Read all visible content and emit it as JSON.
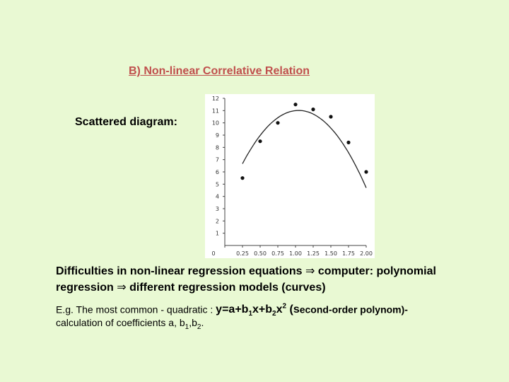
{
  "title": "B) Non-linear Correlative Relation",
  "scatter_label": "Scattered diagram:",
  "difficulties": {
    "line1_pre": "Difficulties in non-linear regression equations",
    "arrow": "⇒",
    "line1_post": "computer: polynomial",
    "line2_pre": "regression",
    "line2_post": "different regression models (curves)"
  },
  "example": {
    "prefix": "E.g. The most common - quadratic : ",
    "formula_y": "y=a+b",
    "formula_sub1": "1",
    "formula_x": "x+b",
    "formula_sub2": "2",
    "formula_x2": "x",
    "formula_sup": "2",
    "note_s": " (s",
    "note_rest": "econd-order polynom)-",
    "calc_pre": "calculation of coefficients a, b",
    "calc_sub1": "1",
    "calc_mid": ",b",
    "calc_sub2": "2",
    "calc_end": "."
  },
  "chart_data": {
    "type": "scatter",
    "x_ticks": [
      "0",
      "0.25",
      "0.50",
      "0.75",
      "1.00",
      "1.25",
      "1.50",
      "1.75",
      "2.00"
    ],
    "y_ticks": [
      "1",
      "2",
      "3",
      "4",
      "5",
      "6",
      "7",
      "8",
      "9",
      "10",
      "11",
      "12"
    ],
    "xlim": [
      0,
      2.0
    ],
    "ylim": [
      0,
      12
    ],
    "points": [
      {
        "x": 0.25,
        "y": 5.5
      },
      {
        "x": 0.5,
        "y": 8.5
      },
      {
        "x": 0.75,
        "y": 10.0
      },
      {
        "x": 1.0,
        "y": 11.5
      },
      {
        "x": 1.25,
        "y": 11.1
      },
      {
        "x": 1.5,
        "y": 10.5
      },
      {
        "x": 1.75,
        "y": 8.4
      },
      {
        "x": 2.0,
        "y": 6.0
      }
    ],
    "fit_curve": {
      "type": "quadratic",
      "a": 3.5,
      "b1": 14.4,
      "b2": -6.9,
      "x_range": [
        0.25,
        2.0
      ]
    },
    "grid": false
  }
}
